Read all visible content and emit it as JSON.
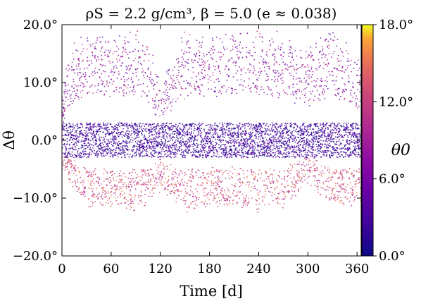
{
  "chart_data": {
    "type": "scatter",
    "title": "ρS = 2.2 g/cm³, β = 5.0 (e ≈ 0.038)",
    "xlabel": "Time [d]",
    "ylabel": "Δθ",
    "xlim": [
      0,
      365
    ],
    "ylim": [
      -20,
      20
    ],
    "xticks": [
      0,
      60,
      120,
      180,
      240,
      300,
      360
    ],
    "xtick_labels": [
      "0",
      "60",
      "120",
      "180",
      "240",
      "300",
      "360"
    ],
    "yticks": [
      20,
      10,
      0,
      -10,
      -20
    ],
    "ytick_labels": [
      "20.0°",
      "10.0°",
      "0.0°",
      "−10.0°",
      "−20.0°"
    ],
    "grid": false,
    "colormap": "plasma",
    "colorbar": {
      "label": "θ0",
      "range": [
        0,
        18
      ],
      "ticks": [
        18,
        12,
        6,
        0
      ],
      "tick_labels": [
        "18.0°",
        "12.0°",
        "6.0°",
        "0.0°"
      ]
    },
    "series": [
      {
        "description_values": "Dense scatter of Δθ versus time; envelope roughly −12° to +18°, low-θ0 points concentrated near 0°, high-θ0 points at the extremes",
        "upper_envelope_by_day": [
          [
            0,
            6
          ],
          [
            10,
            14
          ],
          [
            30,
            17
          ],
          [
            60,
            17
          ],
          [
            100,
            17
          ],
          [
            120,
            8
          ],
          [
            150,
            17
          ],
          [
            180,
            16
          ],
          [
            210,
            17
          ],
          [
            240,
            17
          ],
          [
            270,
            16
          ],
          [
            300,
            14
          ],
          [
            330,
            18
          ],
          [
            365,
            12
          ]
        ],
        "lower_envelope_by_day": [
          [
            0,
            -5
          ],
          [
            30,
            -11
          ],
          [
            60,
            -11
          ],
          [
            90,
            -12
          ],
          [
            120,
            -8
          ],
          [
            150,
            -12
          ],
          [
            180,
            -11
          ],
          [
            210,
            -11
          ],
          [
            240,
            -12
          ],
          [
            270,
            -11
          ],
          [
            300,
            -7
          ],
          [
            330,
            -11
          ],
          [
            365,
            -10
          ]
        ]
      }
    ]
  }
}
